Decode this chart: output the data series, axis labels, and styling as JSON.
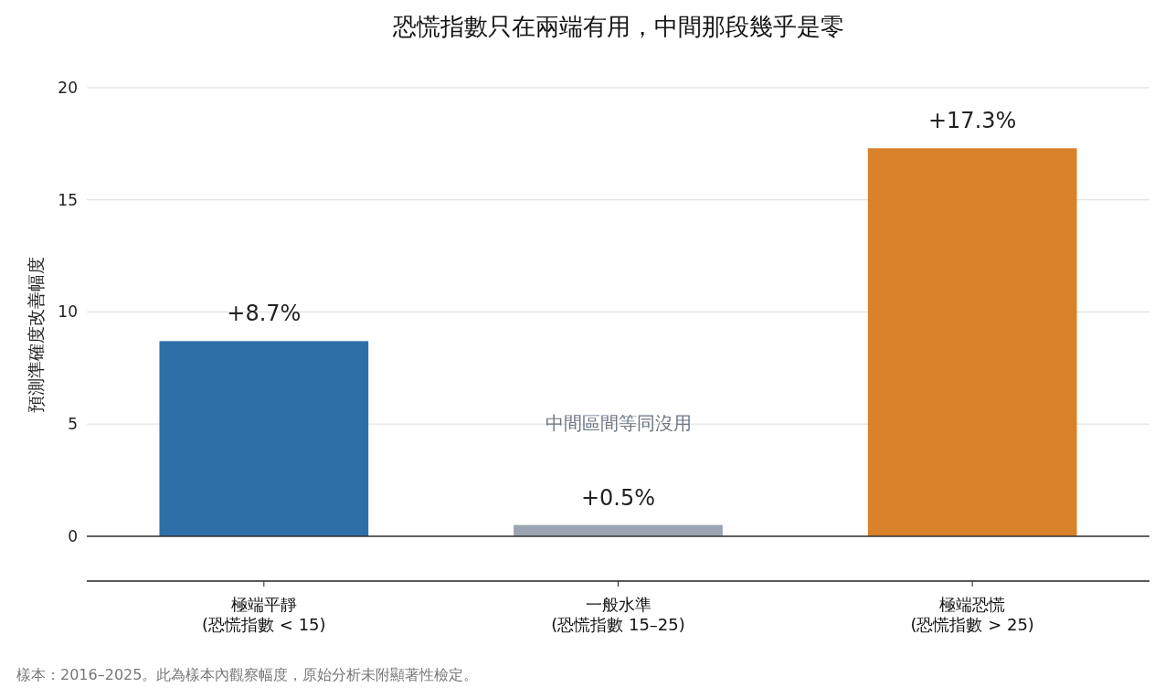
{
  "chart_data": {
    "type": "bar",
    "title": "恐慌指數只在兩端有用，中間那段幾乎是零",
    "ylabel": "預測準確度改善幅度",
    "categories": [
      "極端平靜\n(恐慌指數 < 15)",
      "一般水準\n(恐慌指數 15–25)",
      "極端恐慌\n(恐慌指數 > 25)"
    ],
    "values": [
      8.7,
      0.5,
      17.3
    ],
    "colors": [
      "#2e6fa7",
      "#9aa5b1",
      "#d9812b"
    ],
    "value_labels": [
      "+8.7%",
      "+0.5%",
      "+17.3%"
    ],
    "ylim": [
      -2,
      20
    ],
    "yticks": [
      0,
      5,
      10,
      15,
      20
    ],
    "grid": "y",
    "ref_lines": [
      {
        "axis": "y",
        "value": 0,
        "color": "#333333"
      }
    ],
    "annotations": [
      "中間區間等同沒用",
      "樣本：2016–2025。此為樣本內觀察幅度，原始分析未附顯著性檢定。"
    ]
  }
}
